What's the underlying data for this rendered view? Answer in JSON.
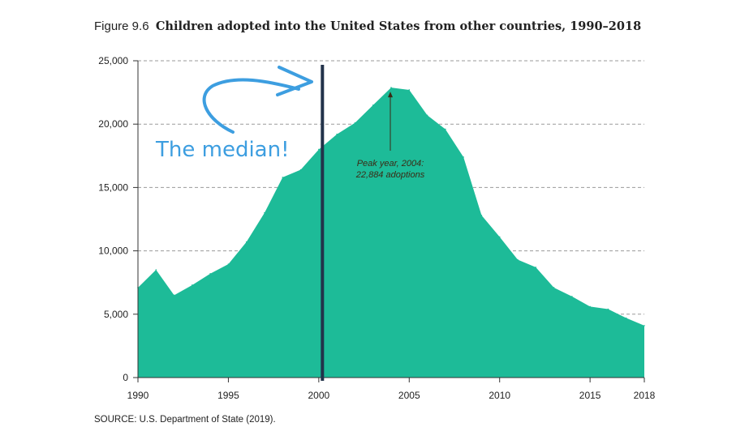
{
  "figure": {
    "number": "Figure 9.6",
    "title": "Children adopted into the United States from other countries, 1990–2018",
    "source": "SOURCE: U.S. Department of State (2019)."
  },
  "chart_data": {
    "type": "area",
    "title": "Children adopted into the United States from other countries, 1990–2018",
    "xlabel": "",
    "ylabel": "",
    "xlim": [
      1990,
      2018
    ],
    "ylim": [
      0,
      25000
    ],
    "x_ticks": [
      1990,
      1995,
      2000,
      2005,
      2010,
      2015,
      2018
    ],
    "y_ticks": [
      0,
      5000,
      10000,
      15000,
      20000,
      25000
    ],
    "y_tick_labels": [
      "0",
      "5,000",
      "10,000",
      "15,000",
      "20,000",
      "25,000"
    ],
    "grid": "horizontal-dashed",
    "color": "#1dbb98",
    "x": [
      1990,
      1991,
      1992,
      1993,
      1994,
      1995,
      1996,
      1997,
      1998,
      1999,
      2000,
      2001,
      2002,
      2003,
      2004,
      2005,
      2006,
      2007,
      2008,
      2009,
      2010,
      2011,
      2012,
      2013,
      2014,
      2015,
      2016,
      2017,
      2018
    ],
    "values": [
      7100,
      8500,
      6500,
      7300,
      8200,
      8950,
      10700,
      13000,
      15800,
      16400,
      18000,
      19200,
      20100,
      21500,
      22884,
      22700,
      20700,
      19600,
      17400,
      12800,
      11100,
      9300,
      8700,
      7100,
      6400,
      5600,
      5400,
      4700,
      4100
    ],
    "annotations": [
      {
        "text_lines": [
          "Peak year, 2004:",
          "22,884 adoptions"
        ],
        "x": 2004,
        "y": 22884
      },
      {
        "text": "The median!",
        "marker_x": 2000.2,
        "style": "handwritten"
      }
    ],
    "median_line_color": "#22334a"
  }
}
